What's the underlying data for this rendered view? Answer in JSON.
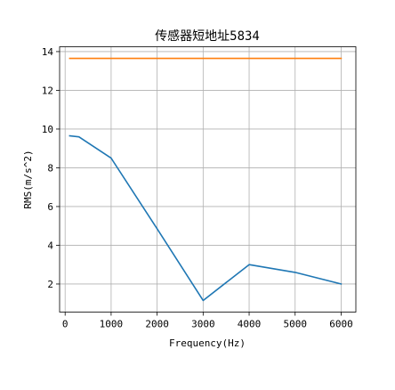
{
  "chart_data": {
    "type": "line",
    "title": "传感器短地址5834",
    "xlabel": "Frequency(Hz)",
    "ylabel": "RMS(m/s^2)",
    "xlim": [
      -120,
      6320
    ],
    "ylim": [
      0.55,
      14.25
    ],
    "xticks": [
      0,
      1000,
      2000,
      3000,
      4000,
      5000,
      6000
    ],
    "yticks": [
      2,
      4,
      6,
      8,
      10,
      12,
      14
    ],
    "grid": true,
    "series": [
      {
        "color": "#1f77b4",
        "x": [
          100,
          300,
          1000,
          2000,
          3000,
          4000,
          5000,
          6000
        ],
        "y": [
          9.65,
          9.6,
          8.5,
          4.85,
          1.15,
          3.0,
          2.6,
          2.0
        ]
      },
      {
        "color": "#ff7f0e",
        "x": [
          100,
          6000
        ],
        "y": [
          13.65,
          13.65
        ]
      }
    ]
  }
}
